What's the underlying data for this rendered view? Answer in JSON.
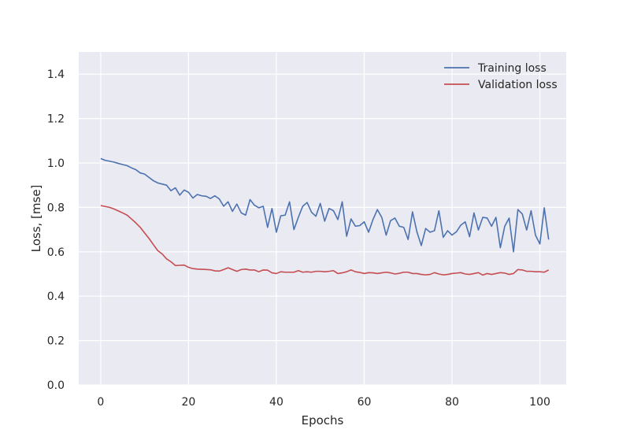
{
  "chart_data": {
    "type": "line",
    "title": "",
    "xlabel": "Epochs",
    "ylabel": "Loss, [mse]",
    "xlim": [
      -5,
      106
    ],
    "ylim": [
      0,
      1.5
    ],
    "xticks": [
      "0",
      "20",
      "40",
      "60",
      "80",
      "100"
    ],
    "yticks": [
      "0.0",
      "0.2",
      "0.4",
      "0.6",
      "0.8",
      "1.0",
      "1.2",
      "1.4"
    ],
    "grid": true,
    "legend_position": "top-right",
    "series": [
      {
        "name": "Training loss",
        "color": "#4c72b0",
        "values": [
          1.02,
          1.012,
          1.008,
          1.004,
          0.998,
          0.993,
          0.988,
          0.978,
          0.97,
          0.955,
          0.95,
          0.935,
          0.92,
          0.91,
          0.905,
          0.9,
          0.875,
          0.888,
          0.855,
          0.878,
          0.868,
          0.842,
          0.858,
          0.852,
          0.85,
          0.84,
          0.852,
          0.838,
          0.805,
          0.825,
          0.782,
          0.815,
          0.775,
          0.765,
          0.835,
          0.81,
          0.798,
          0.805,
          0.71,
          0.795,
          0.688,
          0.762,
          0.765,
          0.825,
          0.7,
          0.755,
          0.805,
          0.822,
          0.778,
          0.76,
          0.818,
          0.738,
          0.795,
          0.785,
          0.745,
          0.825,
          0.67,
          0.748,
          0.715,
          0.718,
          0.735,
          0.688,
          0.745,
          0.79,
          0.755,
          0.675,
          0.74,
          0.752,
          0.715,
          0.71,
          0.655,
          0.78,
          0.69,
          0.628,
          0.705,
          0.688,
          0.695,
          0.785,
          0.665,
          0.695,
          0.675,
          0.69,
          0.72,
          0.735,
          0.668,
          0.775,
          0.698,
          0.755,
          0.752,
          0.715,
          0.755,
          0.618,
          0.715,
          0.752,
          0.6,
          0.79,
          0.77,
          0.698,
          0.785,
          0.675,
          0.635,
          0.798,
          0.655
        ]
      },
      {
        "name": "Validation loss",
        "color": "#c44e52",
        "values": [
          0.808,
          0.804,
          0.8,
          0.793,
          0.784,
          0.775,
          0.765,
          0.748,
          0.73,
          0.71,
          0.685,
          0.66,
          0.632,
          0.605,
          0.59,
          0.568,
          0.555,
          0.538,
          0.539,
          0.54,
          0.53,
          0.524,
          0.522,
          0.521,
          0.52,
          0.519,
          0.514,
          0.513,
          0.52,
          0.528,
          0.52,
          0.512,
          0.52,
          0.522,
          0.518,
          0.518,
          0.51,
          0.518,
          0.517,
          0.505,
          0.502,
          0.51,
          0.508,
          0.508,
          0.508,
          0.515,
          0.508,
          0.51,
          0.508,
          0.512,
          0.512,
          0.51,
          0.512,
          0.515,
          0.502,
          0.505,
          0.51,
          0.518,
          0.51,
          0.507,
          0.502,
          0.506,
          0.505,
          0.502,
          0.505,
          0.508,
          0.505,
          0.5,
          0.503,
          0.508,
          0.508,
          0.502,
          0.502,
          0.498,
          0.496,
          0.498,
          0.506,
          0.5,
          0.496,
          0.498,
          0.502,
          0.504,
          0.506,
          0.5,
          0.498,
          0.502,
          0.506,
          0.495,
          0.502,
          0.498,
          0.502,
          0.506,
          0.504,
          0.498,
          0.502,
          0.52,
          0.518,
          0.512,
          0.512,
          0.51,
          0.51,
          0.508,
          0.518
        ]
      }
    ]
  }
}
